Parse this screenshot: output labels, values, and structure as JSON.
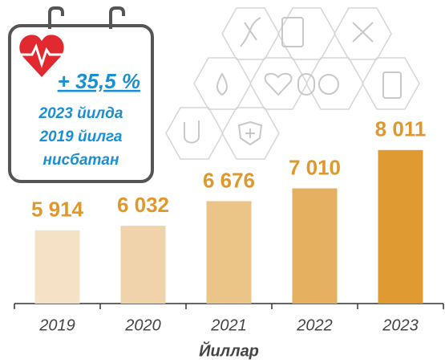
{
  "chart_data": {
    "type": "bar",
    "categories": [
      "2019",
      "2020",
      "2021",
      "2022",
      "2023"
    ],
    "values": [
      5914,
      6032,
      6676,
      7010,
      8011
    ],
    "value_labels": [
      "5 914",
      "6 032",
      "6 676",
      "7 010",
      "8 011"
    ],
    "colors": [
      "#f5e1c5",
      "#f0d3aa",
      "#ebc487",
      "#e6b061",
      "#df9b31"
    ],
    "label_color": "#df982c",
    "ylim": [
      4000,
      10000
    ],
    "x_label": "Йиллар",
    "annotation": {
      "change": "+ 35,5 %",
      "lines": [
        "2023 йилда",
        "2019 йилга",
        "нисбатан"
      ]
    }
  }
}
